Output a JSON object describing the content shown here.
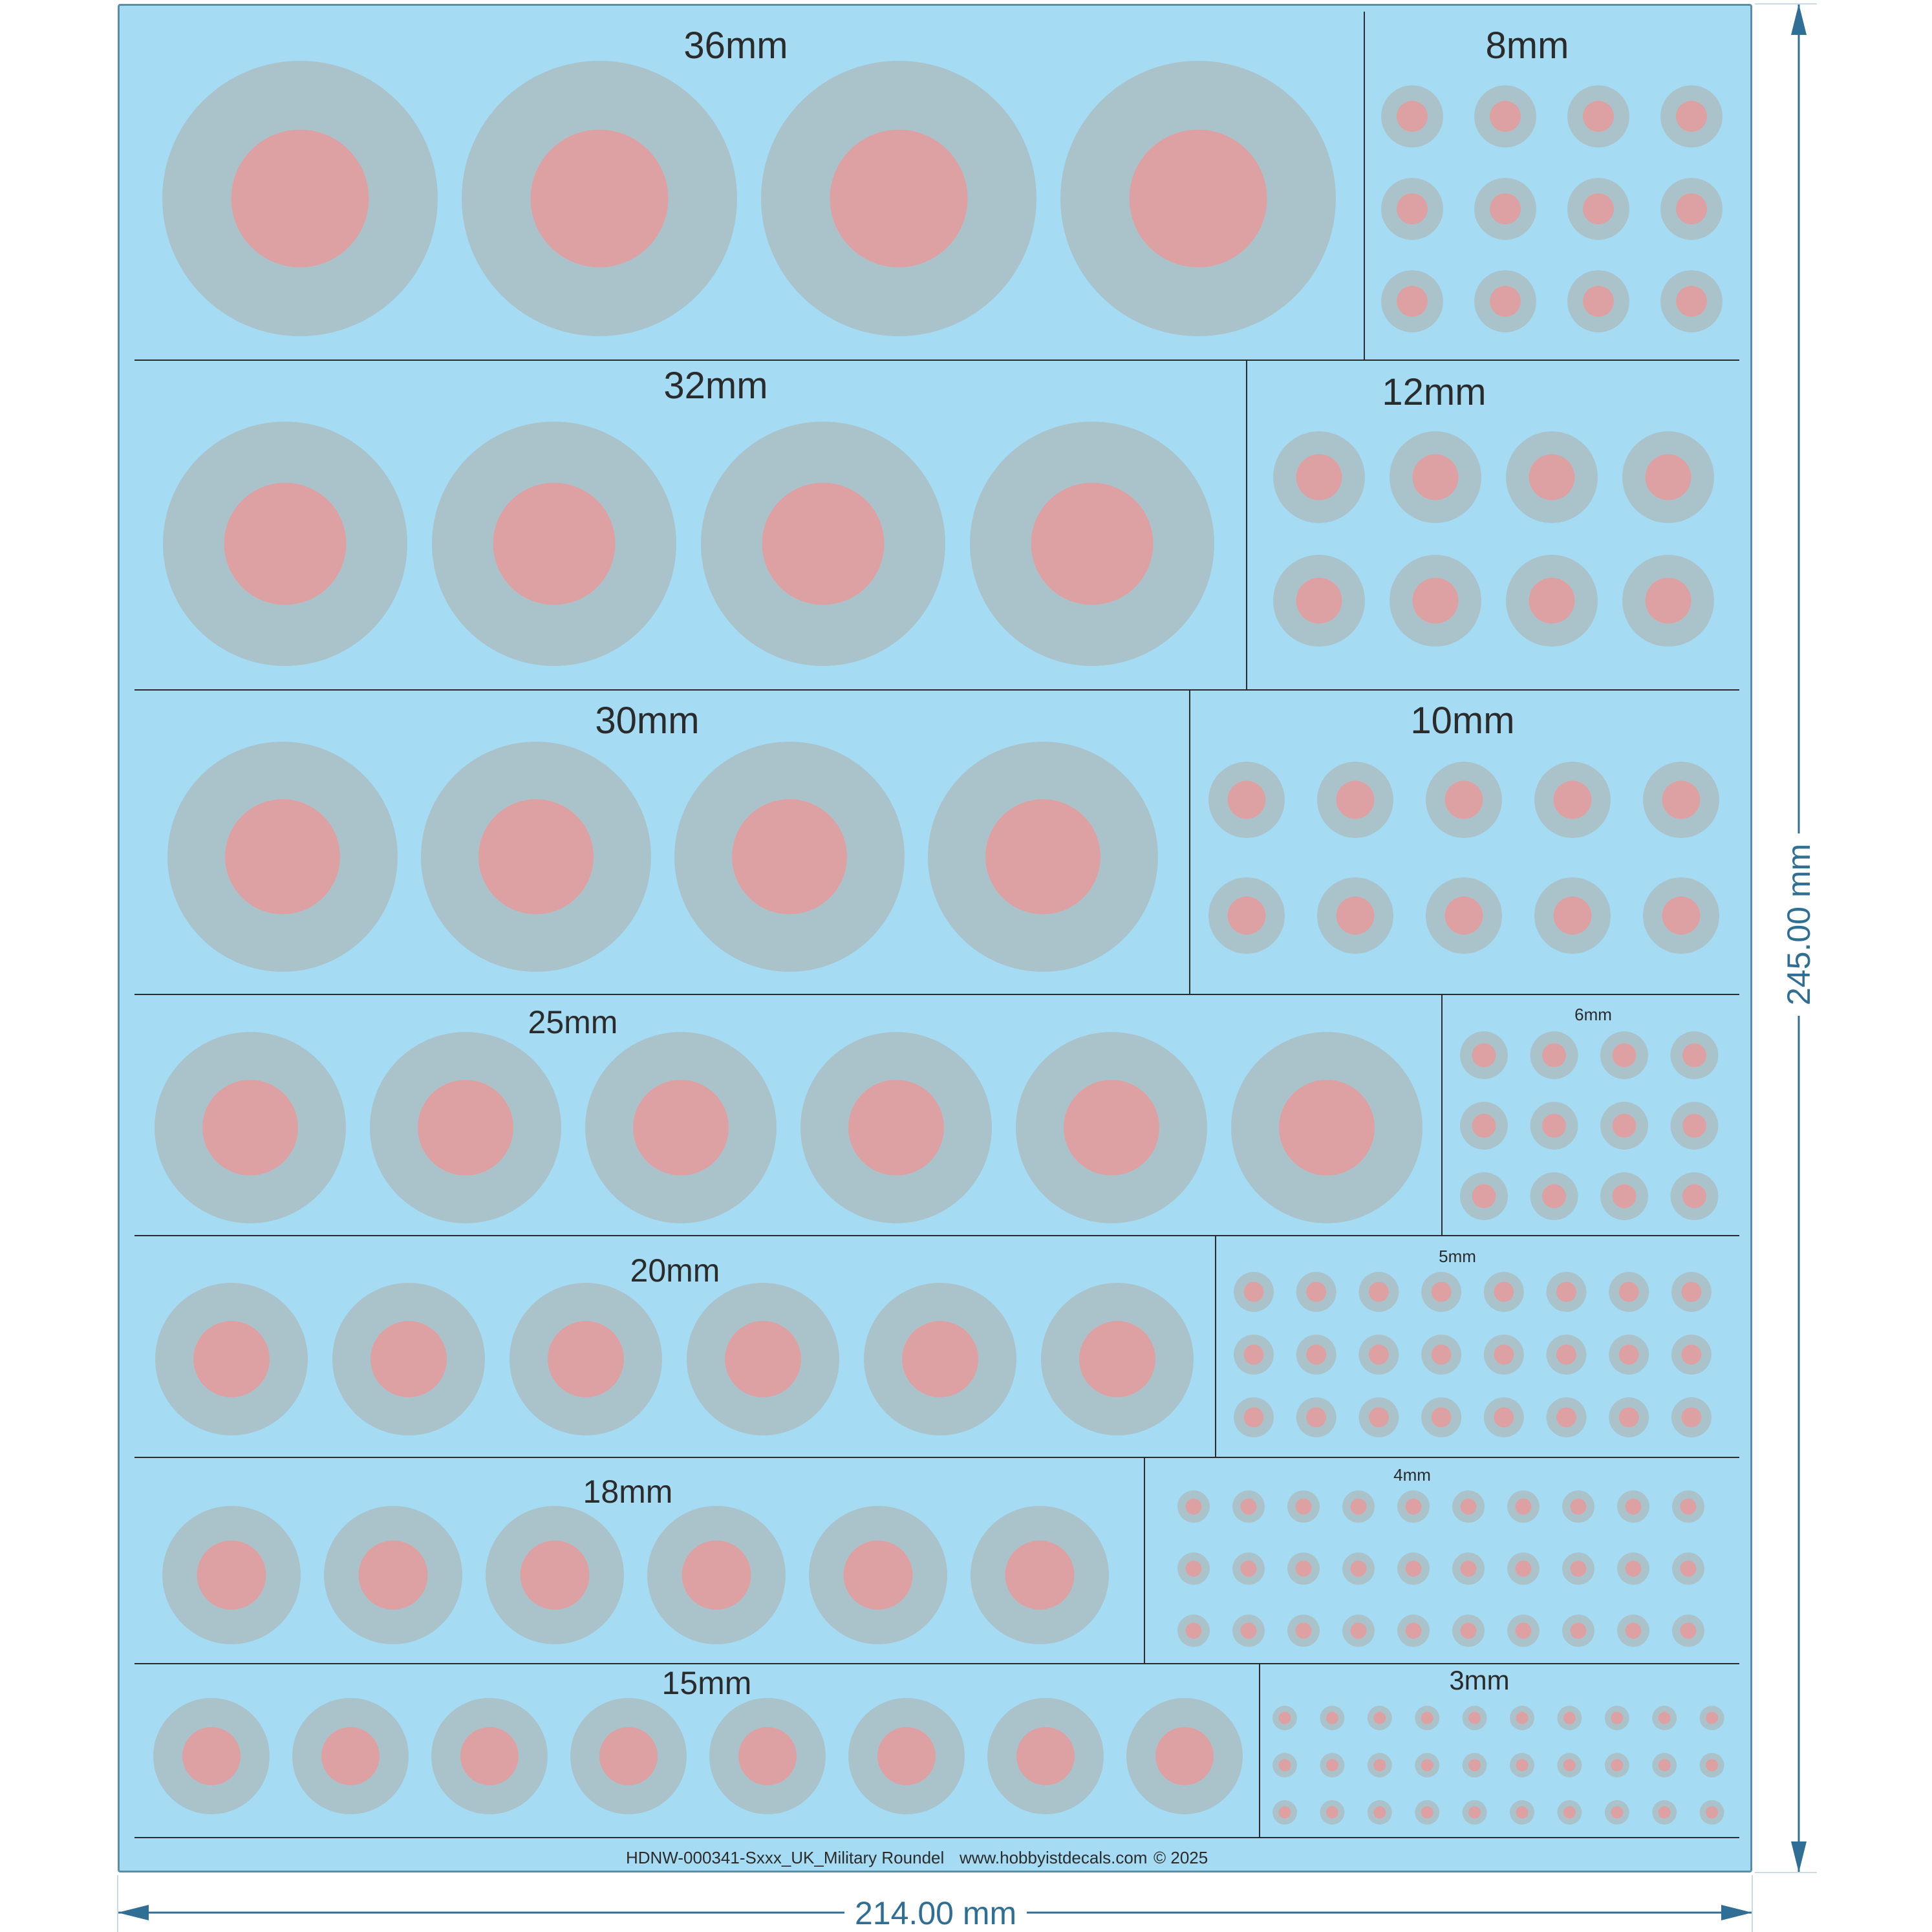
{
  "sheet": {
    "background_color": "#a5dcf4",
    "roundel_outer_color": "#aac3cb",
    "roundel_inner_color": "#dda1a4",
    "divider_color": "#2b2b2b"
  },
  "sections": [
    {
      "label": "36mm",
      "rows": 1,
      "cols": 4
    },
    {
      "label": "8mm",
      "rows": 3,
      "cols": 4
    },
    {
      "label": "32mm",
      "rows": 1,
      "cols": 4
    },
    {
      "label": "12mm",
      "rows": 2,
      "cols": 4
    },
    {
      "label": "30mm",
      "rows": 1,
      "cols": 4
    },
    {
      "label": "10mm",
      "rows": 2,
      "cols": 5
    },
    {
      "label": "25mm",
      "rows": 1,
      "cols": 6
    },
    {
      "label": "6mm",
      "rows": 3,
      "cols": 4
    },
    {
      "label": "20mm",
      "rows": 1,
      "cols": 6
    },
    {
      "label": "5mm",
      "rows": 3,
      "cols": 8
    },
    {
      "label": "18mm",
      "rows": 1,
      "cols": 6
    },
    {
      "label": "4mm",
      "rows": 3,
      "cols": 10
    },
    {
      "label": "15mm",
      "rows": 1,
      "cols": 8
    },
    {
      "label": "3mm",
      "rows": 3,
      "cols": 10
    }
  ],
  "footer": {
    "product_code": "HDNW-000341-Sxxx_UK_Military Roundel",
    "website": "www.hobbyistdecals.com",
    "copyright": "© 2025"
  },
  "dimensions": {
    "width_label": "214.00 mm",
    "height_label": "245.00 mm",
    "line_color": "#2f6f95"
  }
}
